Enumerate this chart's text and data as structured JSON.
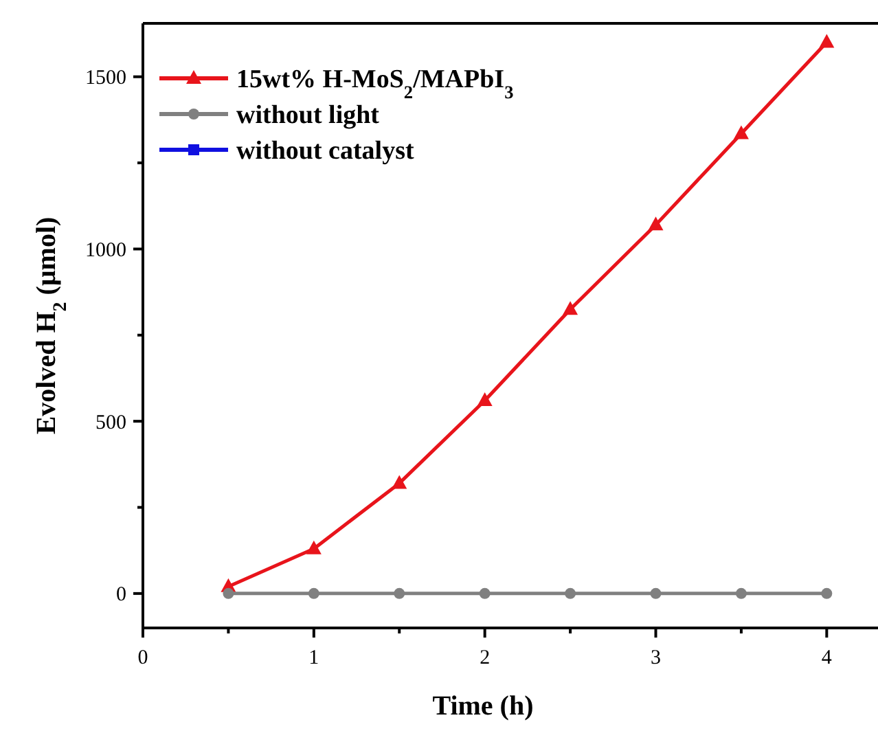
{
  "chart_data": {
    "type": "line",
    "xlabel": "Time (h)",
    "ylabel": "Evolved H$_{2}$ (μmol)",
    "x": [
      0.5,
      1,
      1.5,
      2,
      2.5,
      3,
      3.5,
      4
    ],
    "xlim": [
      0,
      4.3
    ],
    "xticks": [
      0,
      {
        "value": 0.5,
        "label": null
      },
      1,
      {
        "value": 1.5,
        "label": null
      },
      2,
      {
        "value": 2.5,
        "label": null
      },
      3,
      {
        "value": 3.5,
        "label": null
      },
      4
    ],
    "ylim": [
      -100,
      1655
    ],
    "yticks": [
      0,
      {
        "value": 250,
        "label": null
      },
      500,
      {
        "value": 750,
        "label": null
      },
      1000,
      {
        "value": 1250,
        "label": null
      },
      1500
    ],
    "legend": "top left",
    "grid": false,
    "line_style": "solid",
    "series": [
      {
        "name": "15wt% H-MoS$_{2}$/MAPbI$_{3}$",
        "color": "#e8141b",
        "marker": "triangle",
        "values": [
          20,
          130,
          320,
          560,
          825,
          1070,
          1335,
          1600
        ]
      },
      {
        "name": "without light",
        "color": "#808080",
        "marker": "circle",
        "values": [
          0,
          0,
          0,
          0,
          0,
          0,
          0,
          0
        ]
      },
      {
        "name": "without catalyst",
        "color": "#1010e0",
        "marker": "square",
        "values": [
          null,
          null,
          null,
          null,
          null,
          null,
          null,
          null
        ]
      }
    ]
  }
}
